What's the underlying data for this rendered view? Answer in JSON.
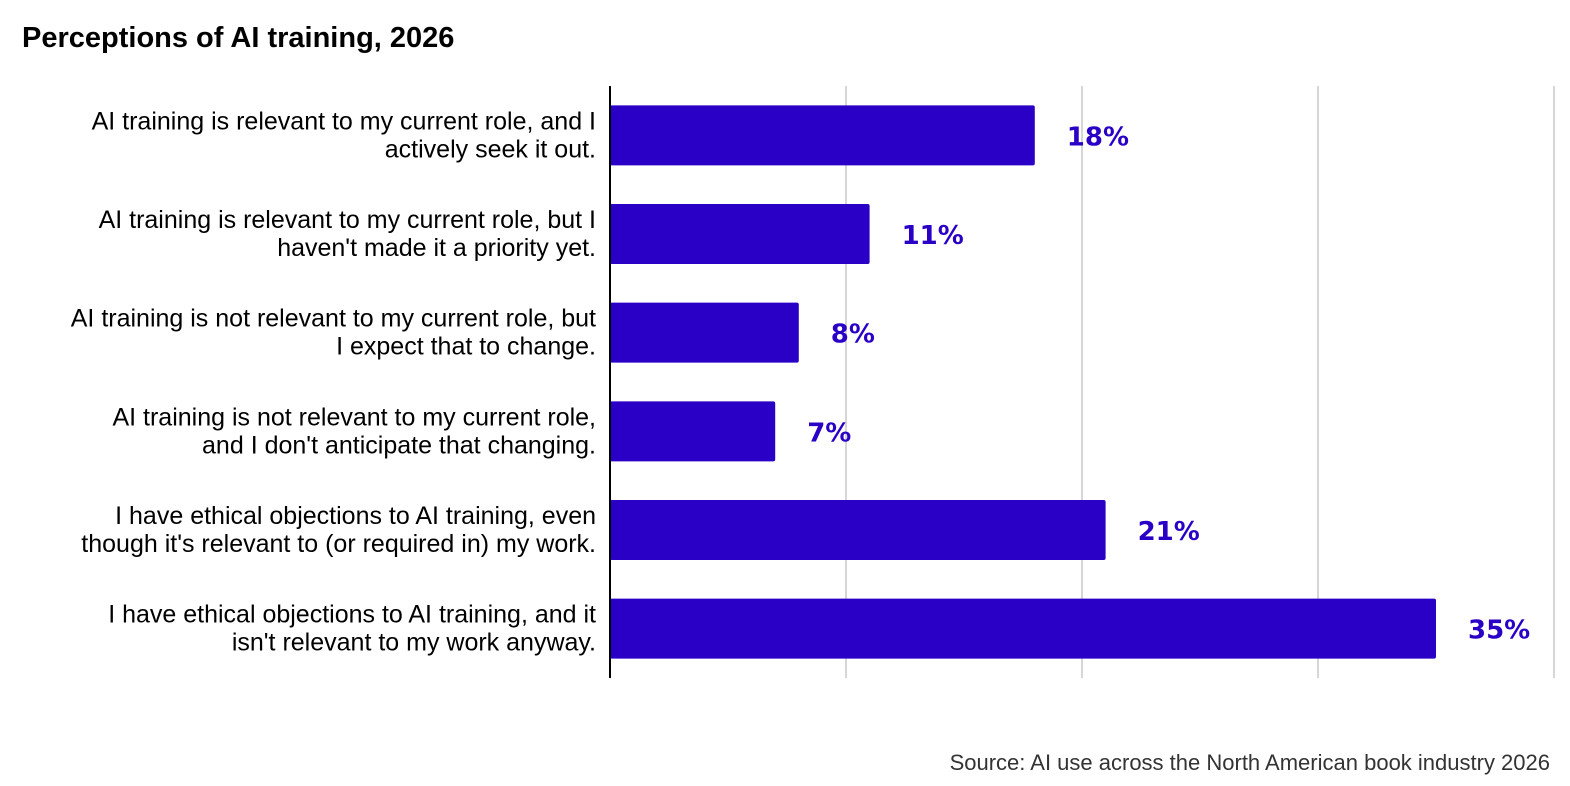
{
  "chart_data": {
    "type": "bar",
    "orientation": "horizontal",
    "title": "Perceptions of AI training, 2026",
    "categories": [
      [
        "AI training is relevant to my current role, and I",
        "actively seek it out."
      ],
      [
        "AI training is relevant to my current role, but I",
        "haven't made it a priority yet."
      ],
      [
        "AI training is not relevant to my current role, but",
        "I expect that to change."
      ],
      [
        "AI training is not relevant to my current role,",
        "and I don't anticipate that changing."
      ],
      [
        "I have ethical objections to AI training, even",
        "though it's relevant to (or required in) my work."
      ],
      [
        "I have ethical objections to AI training, and it",
        "isn't relevant to my work anyway."
      ]
    ],
    "values": [
      18,
      11,
      8,
      7,
      21,
      35
    ],
    "value_labels": [
      "18%",
      "11%",
      "8%",
      "7%",
      "21%",
      "35%"
    ],
    "xlim": [
      0,
      40
    ],
    "grid": true,
    "bar_color": "#2a00c6",
    "label_color": "#2a00c6",
    "source": "Source: AI use across the North American book industry 2026"
  }
}
